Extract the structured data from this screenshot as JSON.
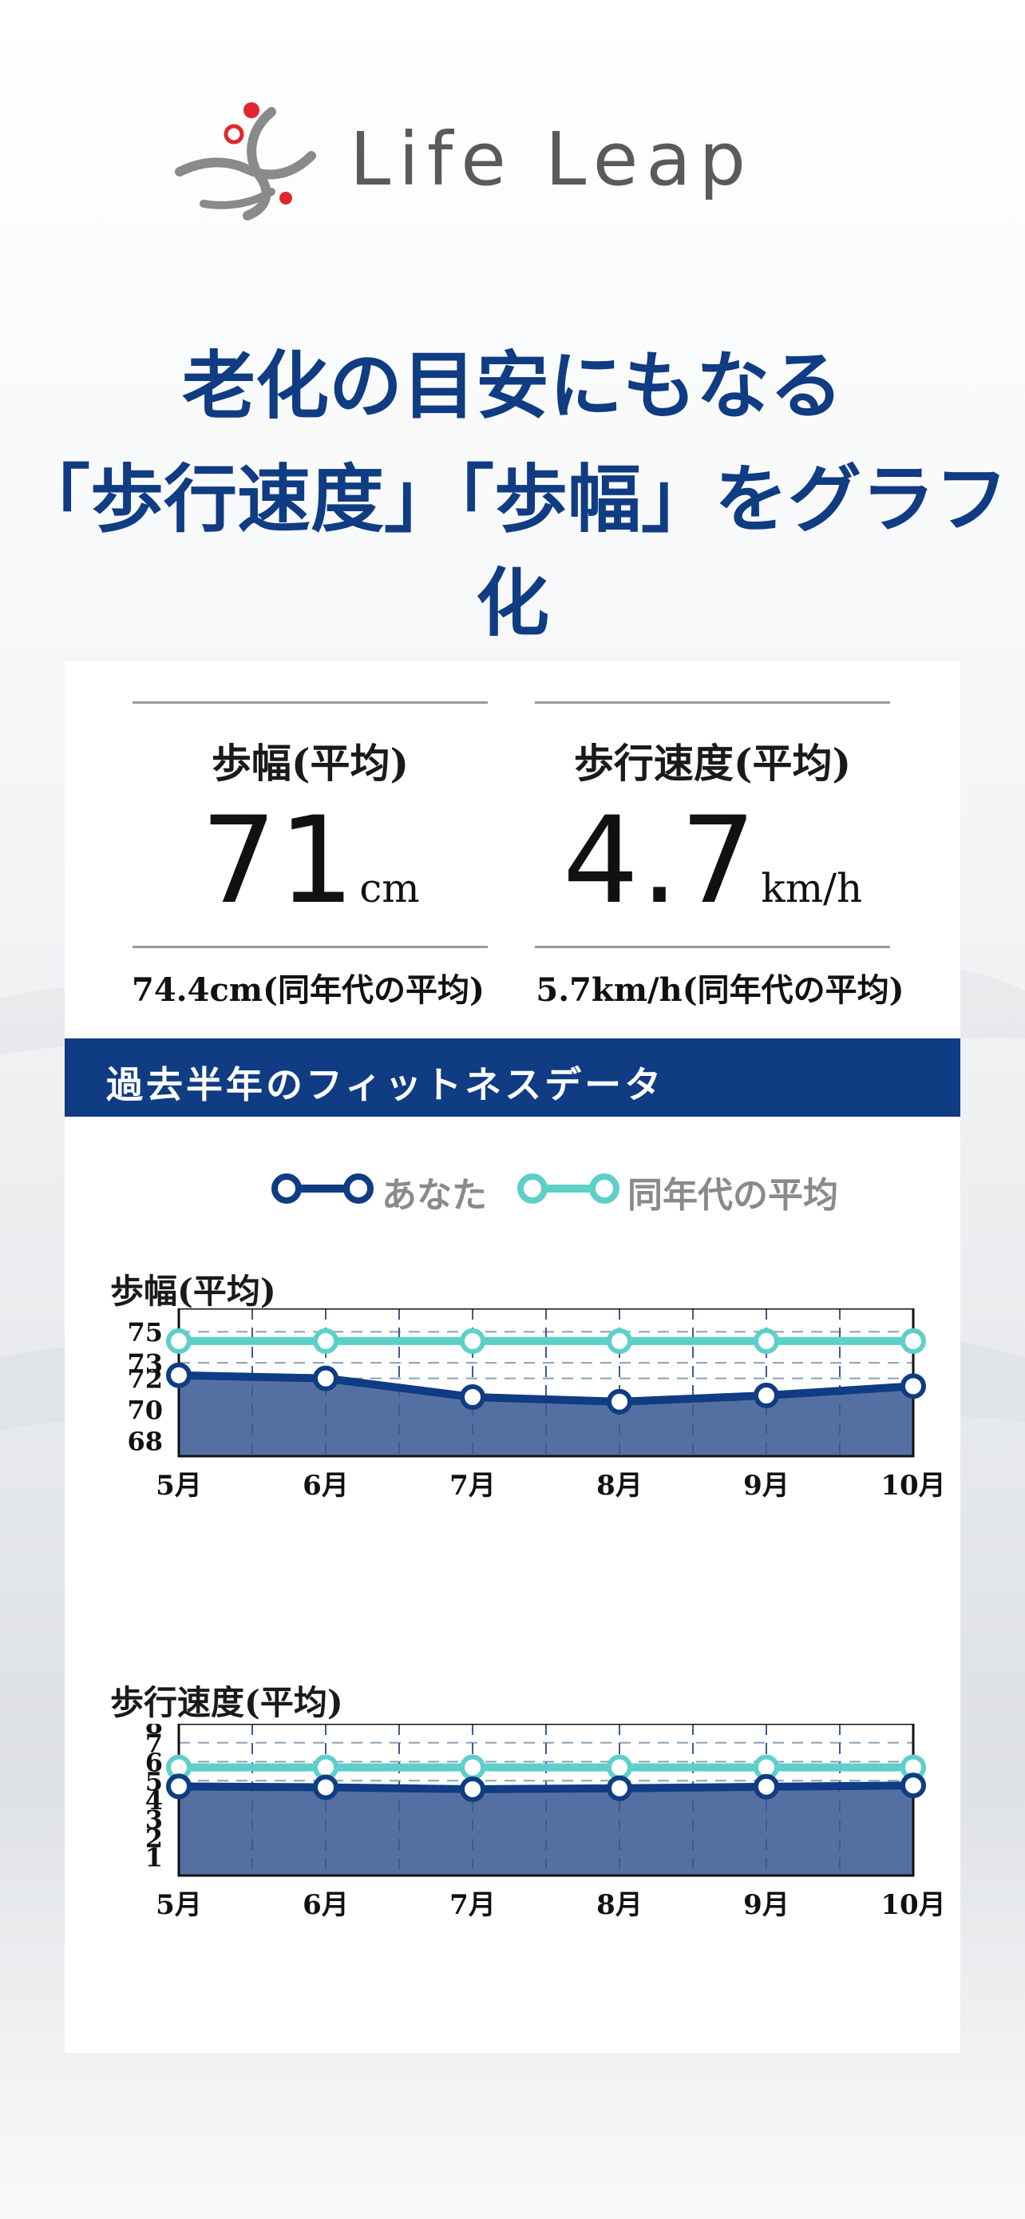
{
  "brand": {
    "name": "Life Leap"
  },
  "headline": {
    "line1": "老化の目安にもなる",
    "line2": "「歩行速度」「歩幅」をグラフ化"
  },
  "stats": {
    "stride": {
      "title": "歩幅(平均)",
      "value": "71",
      "unit": "cm",
      "peer_average": "74.4cm(同年代の平均)"
    },
    "speed": {
      "title": "歩行速度(平均)",
      "value": "4.7",
      "unit": "km/h",
      "peer_average": "5.7km/h(同年代の平均)"
    }
  },
  "section": {
    "title": "過去半年のフィットネスデータ"
  },
  "legend": {
    "you": "あなた",
    "peer": "同年代の平均"
  },
  "colors": {
    "navy": "#0f3c82",
    "teal": "#5ecfc9",
    "fill": "#5470a2"
  },
  "chart_data": [
    {
      "type": "area",
      "title": "歩幅(平均)",
      "categories": [
        "5月",
        "6月",
        "7月",
        "8月",
        "9月",
        "10月"
      ],
      "y_ticks": [
        75,
        73,
        72,
        70,
        68
      ],
      "ylim": [
        67,
        76.5
      ],
      "series": [
        {
          "name": "あなた",
          "values": [
            72.2,
            72,
            70.8,
            70.5,
            70.9,
            71.5
          ]
        },
        {
          "name": "同年代の平均",
          "values": [
            74.4,
            74.4,
            74.4,
            74.4,
            74.4,
            74.4
          ]
        }
      ]
    },
    {
      "type": "area",
      "title": "歩行速度(平均)",
      "categories": [
        "5月",
        "6月",
        "7月",
        "8月",
        "9月",
        "10月"
      ],
      "y_ticks": [
        8,
        7,
        6,
        5,
        4,
        3,
        2,
        1
      ],
      "ylim": [
        0,
        8
      ],
      "series": [
        {
          "name": "あなた",
          "values": [
            4.7,
            4.65,
            4.55,
            4.6,
            4.68,
            4.75
          ]
        },
        {
          "name": "同年代の平均",
          "values": [
            5.7,
            5.7,
            5.7,
            5.7,
            5.7,
            5.7
          ]
        }
      ]
    }
  ]
}
